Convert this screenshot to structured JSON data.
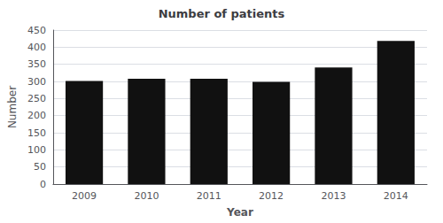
{
  "chart_data": {
    "type": "bar",
    "title": "Number of patients",
    "xlabel": "Year",
    "ylabel": "Number",
    "categories": [
      "2009",
      "2010",
      "2011",
      "2012",
      "2013",
      "2014"
    ],
    "values": [
      301,
      308,
      308,
      299,
      341,
      418
    ],
    "color": "#111111",
    "ylim": [
      0,
      450
    ],
    "yticks": [
      0,
      50,
      100,
      150,
      200,
      250,
      300,
      350,
      400,
      450
    ],
    "grid": true
  }
}
